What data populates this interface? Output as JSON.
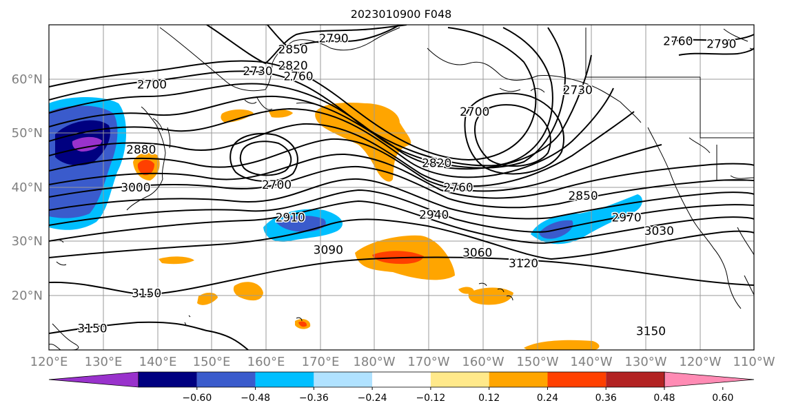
{
  "title": "2023010900 F048",
  "map": {
    "lon_labels": [
      "120°E",
      "130°E",
      "140°E",
      "150°E",
      "160°E",
      "170°E",
      "180°W",
      "170°W",
      "160°W",
      "150°W",
      "140°W",
      "130°W",
      "120°W",
      "110°W"
    ],
    "lat_labels": [
      "20°N",
      "30°N",
      "40°N",
      "50°N",
      "60°N"
    ],
    "lon_range": [
      120,
      250
    ],
    "lat_range": [
      10,
      70
    ],
    "grid": true,
    "contour_labels": [
      {
        "text": "2850",
        "lon": 165,
        "lat": 65.5
      },
      {
        "text": "2790",
        "lon": 172.5,
        "lat": 67.5
      },
      {
        "text": "2820",
        "lon": 165,
        "lat": 62.5
      },
      {
        "text": "2730",
        "lon": 158.5,
        "lat": 61.5
      },
      {
        "text": "2760",
        "lon": 166,
        "lat": 60.5
      },
      {
        "text": "2700",
        "lon": 139,
        "lat": 59
      },
      {
        "text": "2730",
        "lon": 217.5,
        "lat": 58
      },
      {
        "text": "2700",
        "lon": 198.5,
        "lat": 54
      },
      {
        "text": "2760",
        "lon": 236,
        "lat": 67
      },
      {
        "text": "2790",
        "lon": 244,
        "lat": 66.5
      },
      {
        "text": "2880",
        "lon": 137,
        "lat": 47
      },
      {
        "text": "3000",
        "lon": 136,
        "lat": 40
      },
      {
        "text": "2820",
        "lon": 191.5,
        "lat": 44.5
      },
      {
        "text": "2760",
        "lon": 195.5,
        "lat": 40
      },
      {
        "text": "2700",
        "lon": 162,
        "lat": 40.5
      },
      {
        "text": "2850",
        "lon": 218.5,
        "lat": 38.5
      },
      {
        "text": "2970",
        "lon": 226.5,
        "lat": 34.5
      },
      {
        "text": "3030",
        "lon": 232.5,
        "lat": 32
      },
      {
        "text": "2910",
        "lon": 164.5,
        "lat": 34.5
      },
      {
        "text": "2940",
        "lon": 191,
        "lat": 35
      },
      {
        "text": "3090",
        "lon": 171.5,
        "lat": 28.5
      },
      {
        "text": "3060",
        "lon": 199,
        "lat": 28
      },
      {
        "text": "3120",
        "lon": 207.5,
        "lat": 26
      },
      {
        "text": "3150",
        "lon": 138,
        "lat": 20.5
      },
      {
        "text": "3150",
        "lon": 128,
        "lat": 14
      },
      {
        "text": "3150",
        "lon": 231,
        "lat": 13.5
      }
    ]
  },
  "colorbar": {
    "colors": [
      "#9932cc",
      "#000080",
      "#3a5bcc",
      "#00bfff",
      "#b0e2ff",
      "#ffffff",
      "#ffe98a",
      "#ffa500",
      "#ff4000",
      "#b22222",
      "#ff8bb4"
    ],
    "tick_labels": [
      "−0.60",
      "−0.48",
      "−0.36",
      "−0.24",
      "−0.12",
      "0.12",
      "0.24",
      "0.36",
      "0.48",
      "0.60"
    ]
  }
}
